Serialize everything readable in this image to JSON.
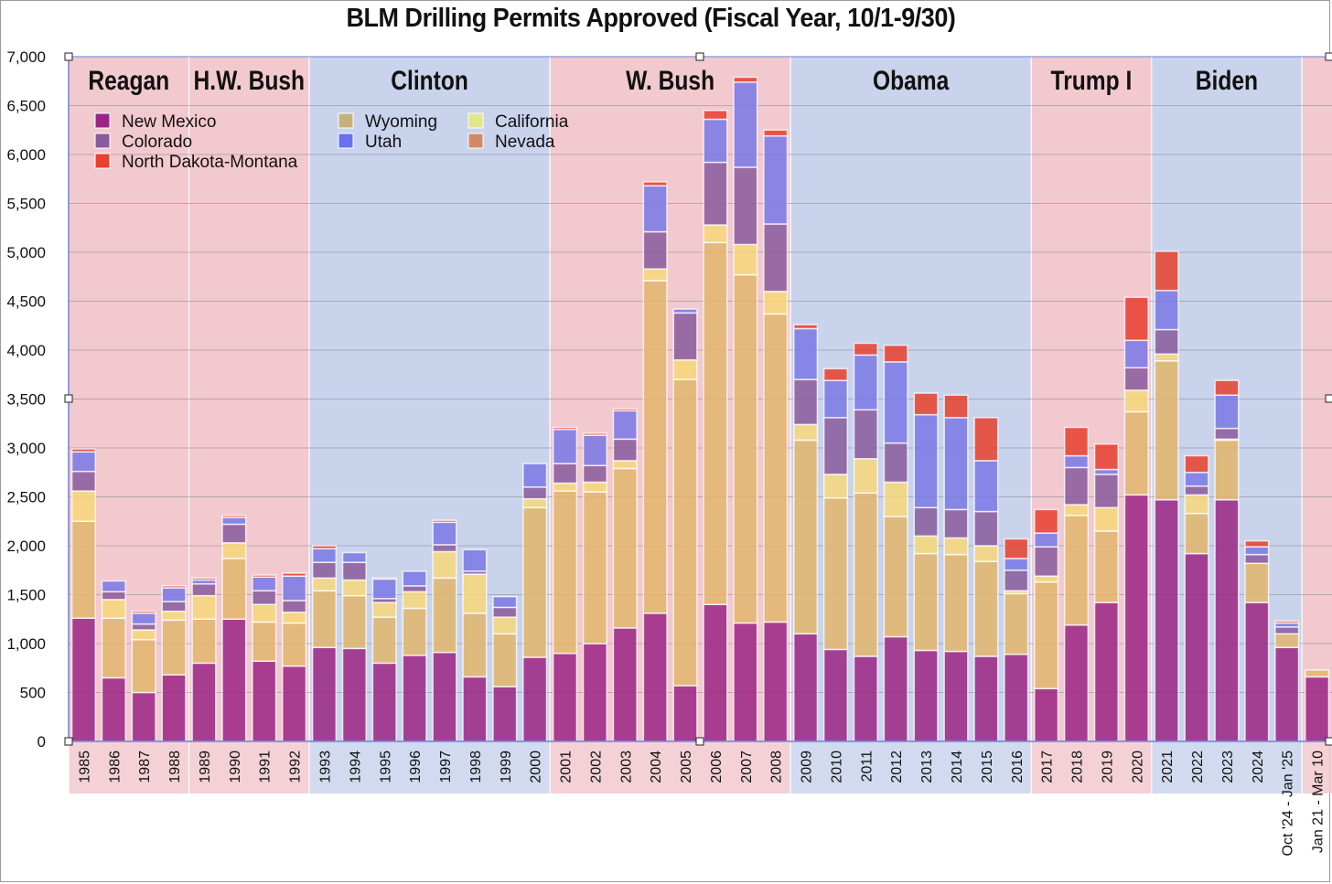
{
  "chart_data": {
    "type": "bar",
    "stacked": true,
    "title": "BLM Drilling Permits Approved (Fiscal Year, 10/1-9/30)",
    "xlabel": "",
    "ylabel": "",
    "ylim": [
      0,
      7000
    ],
    "yticks": [
      0,
      500,
      1000,
      1500,
      2000,
      2500,
      3000,
      3500,
      4000,
      4500,
      5000,
      5500,
      6000,
      6500,
      7000
    ],
    "ytick_labels": [
      "0",
      "500",
      "1,000",
      "1,500",
      "2,000",
      "2,500",
      "3,000",
      "3,500",
      "4,000",
      "4,500",
      "5,000",
      "5,500",
      "6,000",
      "6,500",
      "7,000"
    ],
    "grid": true,
    "legend_position": "top-left",
    "categories": [
      "1985",
      "1986",
      "1987",
      "1988",
      "1989",
      "1990",
      "1991",
      "1992",
      "1993",
      "1994",
      "1995",
      "1996",
      "1997",
      "1998",
      "1999",
      "2000",
      "2001",
      "2002",
      "2003",
      "2004",
      "2005",
      "2006",
      "2007",
      "2008",
      "2009",
      "2010",
      "2011",
      "2012",
      "2013",
      "2014",
      "2015",
      "2016",
      "2017",
      "2018",
      "2019",
      "2020",
      "2021",
      "2022",
      "2023",
      "2024",
      "Oct '24 - Jan '25",
      "Jan 21 - Mar 10"
    ],
    "stack_order": [
      "New Mexico",
      "Wyoming",
      "California",
      "Nevada",
      "Colorado",
      "Utah",
      "North Dakota-Montana"
    ],
    "series": [
      {
        "name": "New Mexico",
        "color": "#9b2484",
        "values": [
          1260,
          650,
          500,
          680,
          800,
          1250,
          820,
          770,
          960,
          950,
          800,
          880,
          910,
          660,
          560,
          860,
          900,
          1000,
          1160,
          1310,
          570,
          1400,
          1210,
          1220,
          1100,
          940,
          870,
          1070,
          930,
          920,
          870,
          890,
          540,
          1190,
          1420,
          2520,
          2470,
          1920,
          2470,
          1420,
          960,
          660
        ]
      },
      {
        "name": "Wyoming",
        "color": "#e3b56c",
        "values": [
          990,
          610,
          540,
          560,
          450,
          620,
          400,
          440,
          580,
          540,
          470,
          480,
          760,
          650,
          540,
          1530,
          1660,
          1550,
          1630,
          3400,
          3130,
          3700,
          3560,
          3150,
          1980,
          1550,
          1670,
          1230,
          990,
          990,
          970,
          620,
          1090,
          1120,
          730,
          850,
          1420,
          410,
          610,
          400,
          140,
          70
        ]
      },
      {
        "name": "California",
        "color": "#f7d77a",
        "values": [
          310,
          190,
          100,
          90,
          240,
          160,
          180,
          110,
          130,
          160,
          150,
          170,
          270,
          400,
          170,
          90,
          80,
          100,
          80,
          120,
          200,
          180,
          310,
          230,
          160,
          240,
          350,
          350,
          180,
          170,
          160,
          30,
          60,
          110,
          240,
          220,
          70,
          190,
          10,
          0,
          0,
          0
        ]
      },
      {
        "name": "Nevada",
        "color": "#d98a5c",
        "values": [
          0,
          0,
          0,
          0,
          0,
          0,
          0,
          0,
          0,
          0,
          0,
          0,
          0,
          0,
          0,
          0,
          0,
          0,
          0,
          0,
          0,
          0,
          0,
          0,
          0,
          0,
          0,
          0,
          0,
          0,
          0,
          0,
          0,
          0,
          0,
          0,
          0,
          0,
          0,
          0,
          0,
          0
        ]
      },
      {
        "name": "Colorado",
        "color": "#8a5a9c",
        "values": [
          200,
          80,
          60,
          100,
          120,
          190,
          140,
          120,
          160,
          180,
          40,
          60,
          70,
          30,
          100,
          120,
          200,
          170,
          220,
          380,
          480,
          640,
          790,
          690,
          460,
          580,
          500,
          400,
          290,
          290,
          350,
          210,
          300,
          380,
          340,
          230,
          250,
          90,
          110,
          90,
          70,
          0
        ]
      },
      {
        "name": "Utah",
        "color": "#7a78e6",
        "values": [
          200,
          110,
          110,
          140,
          40,
          70,
          140,
          250,
          140,
          100,
          200,
          150,
          230,
          220,
          110,
          240,
          350,
          310,
          290,
          470,
          40,
          440,
          870,
          900,
          520,
          380,
          560,
          830,
          950,
          940,
          520,
          120,
          140,
          120,
          50,
          280,
          400,
          140,
          340,
          80,
          40,
          0
        ]
      },
      {
        "name": "North Dakota-Montana",
        "color": "#e8402e",
        "values": [
          30,
          0,
          20,
          20,
          20,
          20,
          20,
          30,
          30,
          0,
          10,
          0,
          20,
          0,
          0,
          0,
          20,
          20,
          20,
          40,
          0,
          90,
          50,
          60,
          40,
          120,
          120,
          170,
          220,
          230,
          440,
          200,
          240,
          290,
          260,
          440,
          400,
          170,
          150,
          60,
          20,
          0
        ]
      }
    ],
    "eras": [
      {
        "label": "Reagan",
        "party": "R",
        "from": "1985",
        "to": "1988"
      },
      {
        "label": "H.W. Bush",
        "party": "R",
        "from": "1989",
        "to": "1992"
      },
      {
        "label": "Clinton",
        "party": "D",
        "from": "1993",
        "to": "2000"
      },
      {
        "label": "W. Bush",
        "party": "R",
        "from": "2001",
        "to": "2008"
      },
      {
        "label": "Obama",
        "party": "D",
        "from": "2009",
        "to": "2016"
      },
      {
        "label": "Trump I",
        "party": "R",
        "from": "2017",
        "to": "2020"
      },
      {
        "label": "Biden",
        "party": "D",
        "from": "2021",
        "to": "Oct '24 - Jan '25"
      },
      {
        "label": "",
        "party": "R",
        "from": "Jan 21 - Mar 10",
        "to": "Jan 21 - Mar 10"
      }
    ],
    "era_colors": {
      "R": "#f2c9cf",
      "D": "#c9d3ec"
    },
    "legend": [
      {
        "name": "New Mexico",
        "color": "#9b2484"
      },
      {
        "name": "Colorado",
        "color": "#8a5a9c"
      },
      {
        "name": "North Dakota-Montana",
        "color": "#e8402e"
      },
      {
        "name": "Wyoming",
        "color": "#c8b07e"
      },
      {
        "name": "Utah",
        "color": "#6a70f0"
      },
      {
        "name": "California",
        "color": "#e3e58a"
      },
      {
        "name": "Nevada",
        "color": "#d28a62"
      }
    ]
  }
}
